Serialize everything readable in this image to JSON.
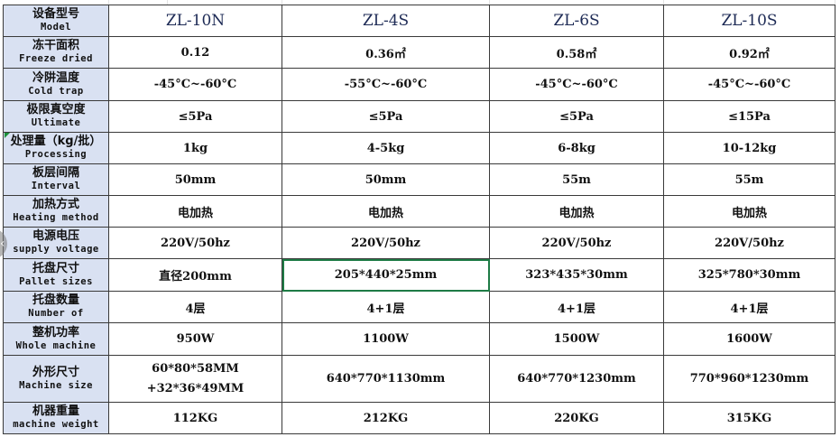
{
  "table": {
    "header_label": {
      "zh": "设备型号",
      "en": "Model"
    },
    "models": [
      "ZL-10N",
      "ZL-4S",
      "ZL-6S",
      "ZL-10S"
    ],
    "rows": [
      {
        "zh": "冻干面积",
        "en": "Freeze dried",
        "values": [
          "0.12",
          "0.36㎡",
          "0.58㎡",
          "0.92㎡"
        ]
      },
      {
        "zh": "冷阱温度",
        "en": "Cold trap",
        "values": [
          "-45°C~-60°C",
          "-55°C~-60°C",
          "-45°C~-60°C",
          "-45°C~-60°C"
        ]
      },
      {
        "zh": "极限真空度",
        "en": "Ultimate",
        "values": [
          "≤5Pa",
          "≤5Pa",
          "≤5Pa",
          "≤15Pa"
        ]
      },
      {
        "zh": "处理量（kg/批）",
        "en": "Processing",
        "values": [
          "1kg",
          "4-5kg",
          "6-8kg",
          "10-12kg"
        ]
      },
      {
        "zh": "板层间隔",
        "en": "Interval",
        "values": [
          "50mm",
          "50mm",
          "55m",
          "55m"
        ]
      },
      {
        "zh": "加热方式",
        "en": "Heating method",
        "values": [
          "电加热",
          "电加热",
          "电加热",
          "电加热"
        ]
      },
      {
        "zh": "电源电压",
        "en": "supply voltage",
        "values": [
          "220V/50hz",
          "220V/50hz",
          "220V/50hz",
          "220V/50hz"
        ]
      },
      {
        "zh": "托盘尺寸",
        "en": "Pallet sizes",
        "values": [
          "直径200mm",
          "205*440*25mm",
          "323*435*30mm",
          "325*780*30mm"
        ]
      },
      {
        "zh": "托盘数量",
        "en": "Number of",
        "values": [
          "4层",
          "4+1层",
          "4+1层",
          "4+1层"
        ]
      },
      {
        "zh": "整机功率",
        "en": "Whole machine",
        "values": [
          "950W",
          "1100W",
          "1500W",
          "1600W"
        ]
      },
      {
        "zh": "外形尺寸",
        "en": "Machine size",
        "values": [
          "60*80*58MM",
          "640*770*1130mm",
          "640*770*1230mm",
          "770*960*1230mm"
        ],
        "extra_line": "+32*36*49MM"
      },
      {
        "zh": "机器重量",
        "en": "machine weight",
        "values": [
          "112KG",
          "212KG",
          "220KG",
          "315KG"
        ]
      }
    ]
  },
  "nav": {
    "prev_icon": "chevron-left-icon",
    "prev_glyph": "‹"
  },
  "colors": {
    "label_bg": "#d9e1f2",
    "selection": "#1e7b45",
    "model_text": "#1d2a55"
  }
}
